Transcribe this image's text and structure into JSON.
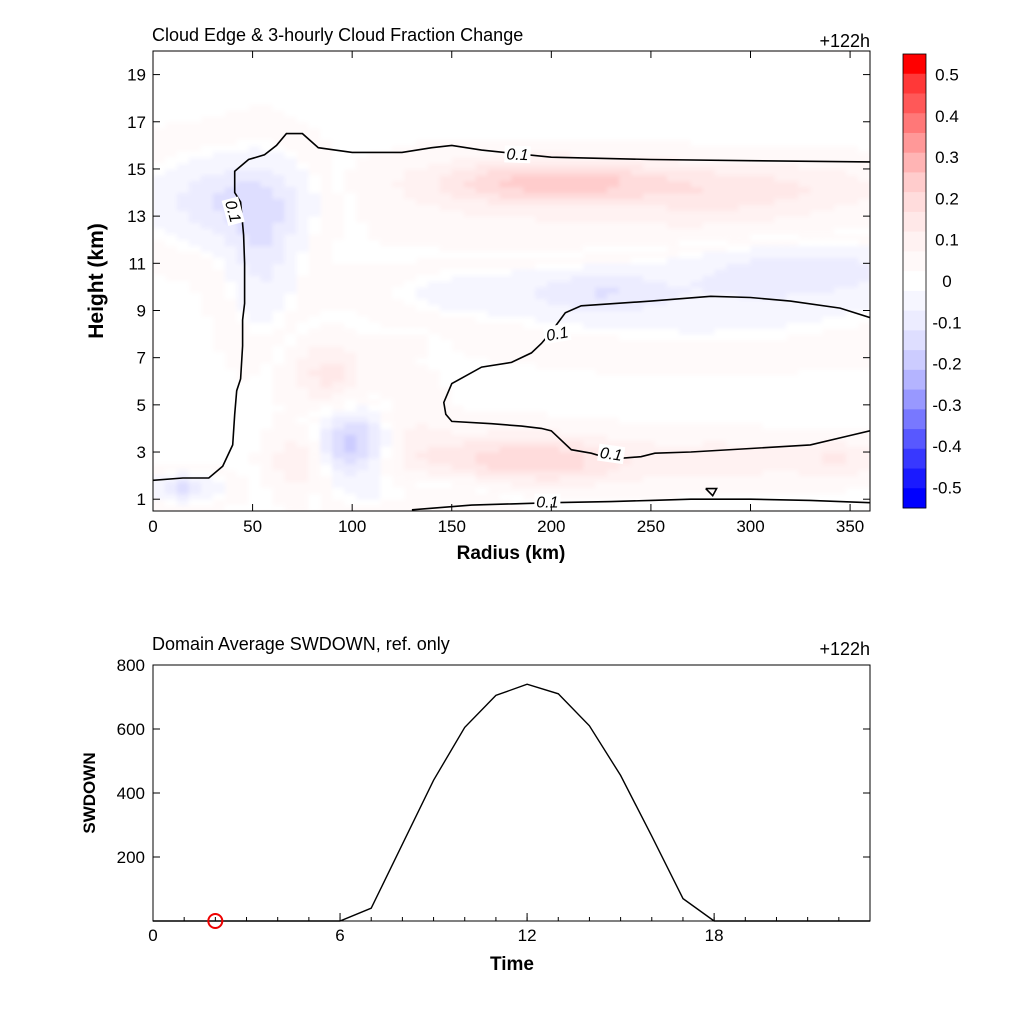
{
  "chart_data": [
    {
      "type": "heatmap",
      "title": "Cloud Edge & 3-hourly Cloud Fraction Change",
      "time_label": "+122h",
      "xlabel": "Radius (km)",
      "ylabel": "Height (km)",
      "xlim": [
        0,
        360
      ],
      "ylim": [
        0.5,
        20
      ],
      "xticks": [
        0,
        50,
        100,
        150,
        200,
        250,
        300,
        350
      ],
      "yticks": [
        1,
        3,
        5,
        7,
        9,
        11,
        13,
        15,
        17,
        19
      ],
      "colorbar": {
        "range": [
          -0.55,
          0.55
        ],
        "step": 0.05,
        "labels": [
          "0.5",
          "0.4",
          "0.3",
          "0.2",
          "0.1",
          "0",
          "-0.1",
          "-0.2",
          "-0.3",
          "-0.4",
          "-0.5"
        ],
        "colors": [
          "#ff0000",
          "#ff3838",
          "#ff5858",
          "#ff7878",
          "#ff9898",
          "#ffb4b4",
          "#ffcccc",
          "#ffdcdc",
          "#ffe8e8",
          "#fff2f2",
          "#fff9f9",
          "#ffffff",
          "#f6f6ff",
          "#ececff",
          "#dedeff",
          "#ccccff",
          "#b4b4ff",
          "#9898ff",
          "#7878ff",
          "#5858ff",
          "#3838ff",
          "#1a1aff",
          "#0000ff"
        ]
      },
      "contour_level_label": "0.1",
      "anomalies": [
        {
          "r": 210,
          "z": 14.5,
          "sr": 40,
          "sz": 0.6,
          "v": 0.15
        },
        {
          "r": 180,
          "z": 14.4,
          "sr": 45,
          "sz": 0.9,
          "v": 0.1
        },
        {
          "r": 280,
          "z": 14.0,
          "sr": 35,
          "sz": 0.9,
          "v": 0.08
        },
        {
          "r": 330,
          "z": 14.3,
          "sr": 40,
          "sz": 0.8,
          "v": 0.07
        },
        {
          "r": 240,
          "z": 12.6,
          "sr": 90,
          "sz": 1.0,
          "v": 0.04
        },
        {
          "r": 40,
          "z": 13.6,
          "sr": 28,
          "sz": 1.3,
          "v": -0.14
        },
        {
          "r": 55,
          "z": 11.5,
          "sr": 12,
          "sz": 2.2,
          "v": -0.1
        },
        {
          "r": 15,
          "z": 1.5,
          "sr": 12,
          "sz": 0.4,
          "v": -0.15
        },
        {
          "r": 100,
          "z": 3.4,
          "sr": 14,
          "sz": 1.0,
          "v": -0.22
        },
        {
          "r": 330,
          "z": 10.8,
          "sr": 40,
          "sz": 0.8,
          "v": -0.1
        },
        {
          "r": 275,
          "z": 9.5,
          "sr": 70,
          "sz": 1.3,
          "v": -0.07
        },
        {
          "r": 225,
          "z": 9.8,
          "sr": 20,
          "sz": 0.6,
          "v": -0.08
        },
        {
          "r": 165,
          "z": 9.8,
          "sr": 35,
          "sz": 0.7,
          "v": -0.05
        },
        {
          "r": 140,
          "z": 1.4,
          "sr": 40,
          "sz": 0.6,
          "v": -0.05
        },
        {
          "r": 200,
          "z": 2.6,
          "sr": 35,
          "sz": 0.8,
          "v": 0.15
        },
        {
          "r": 165,
          "z": 2.8,
          "sr": 35,
          "sz": 0.8,
          "v": 0.08
        },
        {
          "r": 290,
          "z": 2.7,
          "sr": 30,
          "sz": 0.7,
          "v": 0.09
        },
        {
          "r": 345,
          "z": 2.7,
          "sr": 15,
          "sz": 0.6,
          "v": 0.1
        },
        {
          "r": 73,
          "z": 2.6,
          "sr": 10,
          "sz": 1.0,
          "v": 0.12
        },
        {
          "r": 88,
          "z": 6.3,
          "sr": 13,
          "sz": 1.0,
          "v": 0.13
        },
        {
          "r": 130,
          "z": 4.0,
          "sr": 12,
          "sz": 1.5,
          "v": 0.06
        },
        {
          "r": 125,
          "z": 7.6,
          "sr": 8,
          "sz": 0.3,
          "v": 0.05
        }
      ],
      "contours": [
        {
          "points": [
            [
              0,
              1.8
            ],
            [
              15,
              1.9
            ],
            [
              28,
              1.9
            ],
            [
              35,
              2.4
            ],
            [
              40,
              3.3
            ],
            [
              41,
              4.6
            ],
            [
              42,
              5.6
            ],
            [
              44,
              6.1
            ],
            [
              45,
              7.5
            ],
            [
              45,
              8.6
            ],
            [
              46,
              9.3
            ],
            [
              46,
              10.2
            ],
            [
              46,
              11.0
            ],
            [
              45.5,
              12.2
            ],
            [
              44,
              13.6
            ],
            [
              41,
              14.0
            ],
            [
              41,
              14.9
            ],
            [
              48,
              15.4
            ],
            [
              56,
              15.6
            ],
            [
              62,
              16.0
            ],
            [
              67,
              16.5
            ],
            [
              75,
              16.5
            ],
            [
              83,
              15.9
            ],
            [
              100,
              15.7
            ],
            [
              125,
              15.7
            ],
            [
              140,
              15.9
            ],
            [
              150,
              16.0
            ],
            [
              165,
              15.8
            ],
            [
              200,
              15.5
            ],
            [
              250,
              15.4
            ],
            [
              300,
              15.35
            ],
            [
              360,
              15.3
            ]
          ]
        },
        {
          "points": [
            [
              360,
              8.7
            ],
            [
              345,
              9.1
            ],
            [
              320,
              9.4
            ],
            [
              300,
              9.55
            ],
            [
              280,
              9.6
            ],
            [
              250,
              9.4
            ],
            [
              215,
              9.2
            ],
            [
              207,
              8.9
            ],
            [
              200,
              8.1
            ],
            [
              197,
              7.8
            ],
            [
              195,
              7.6
            ],
            [
              190,
              7.2
            ],
            [
              180,
              6.8
            ],
            [
              165,
              6.6
            ],
            [
              150,
              5.9
            ],
            [
              146,
              5.1
            ],
            [
              147,
              4.6
            ],
            [
              150,
              4.3
            ],
            [
              170,
              4.2
            ],
            [
              185,
              4.1
            ],
            [
              195,
              4.0
            ],
            [
              200,
              3.9
            ],
            [
              210,
              3.1
            ],
            [
              220,
              2.95
            ],
            [
              230,
              2.7
            ],
            [
              245,
              2.8
            ],
            [
              252,
              2.95
            ],
            [
              270,
              3.0
            ],
            [
              300,
              3.15
            ],
            [
              330,
              3.3
            ],
            [
              350,
              3.7
            ],
            [
              360,
              3.9
            ]
          ]
        },
        {
          "points": [
            [
              130,
              0.55
            ],
            [
              160,
              0.75
            ],
            [
              180,
              0.8
            ],
            [
              200,
              0.85
            ],
            [
              230,
              0.9
            ],
            [
              250,
              0.95
            ],
            [
              270,
              1.0
            ],
            [
              300,
              1.0
            ],
            [
              330,
              0.95
            ],
            [
              360,
              0.85
            ]
          ]
        },
        {
          "points": [
            [
              277.5,
              1.45
            ],
            [
              283,
              1.45
            ],
            [
              281,
              1.15
            ],
            [
              277.5,
              1.45
            ]
          ]
        }
      ],
      "contour_labels": [
        {
          "r": 183,
          "z": 15.6,
          "angle": 2
        },
        {
          "r": 40,
          "z": 13.2,
          "angle": 75
        },
        {
          "r": 203,
          "z": 8.0,
          "angle": -10
        },
        {
          "r": 230,
          "z": 2.9,
          "angle": 8
        },
        {
          "r": 198,
          "z": 0.85,
          "angle": 0
        }
      ]
    },
    {
      "type": "line",
      "title": "Domain Average SWDOWN, ref. only",
      "time_label": "+122h",
      "xlabel": "Time",
      "ylabel": "SWDOWN",
      "xlim": [
        0,
        23
      ],
      "ylim": [
        0,
        800
      ],
      "xticks": [
        0,
        6,
        12,
        18
      ],
      "yticks": [
        200,
        400,
        600,
        800
      ],
      "x": [
        0,
        1,
        2,
        3,
        4,
        5,
        6,
        7,
        8,
        9,
        10,
        11,
        12,
        13,
        14,
        15,
        16,
        17,
        18,
        19,
        20,
        21,
        22,
        23
      ],
      "values": [
        0,
        0,
        0,
        0,
        0,
        0,
        0,
        40,
        240,
        440,
        605,
        705,
        740,
        710,
        610,
        455,
        265,
        70,
        0,
        0,
        0,
        0,
        0,
        0
      ],
      "marker": {
        "x": 2,
        "y": 0,
        "color": "#ee0000"
      }
    }
  ]
}
